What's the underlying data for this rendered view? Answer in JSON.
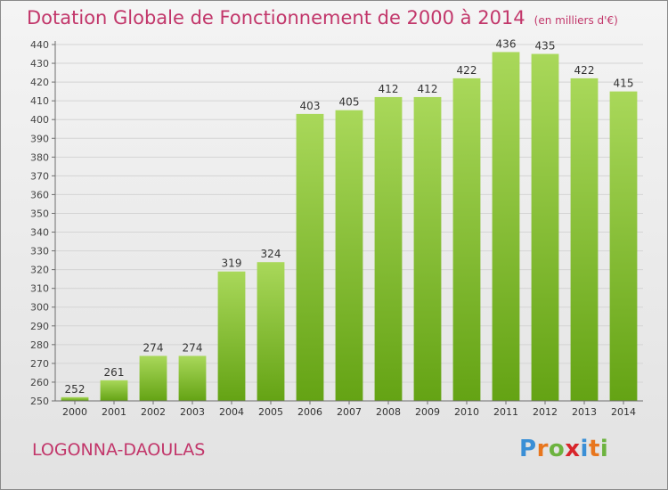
{
  "title": "Dotation Globale de Fonctionnement de 2000 à 2014",
  "unit_label": "(en milliers d'€)",
  "place_name": "LOGONNA-DAOULAS",
  "logo": {
    "letters": [
      "P",
      "r",
      "o",
      "x",
      "i",
      "t",
      "i"
    ],
    "colors": [
      "#3a8fd6",
      "#e8761d",
      "#6db33f",
      "#d8252b",
      "#3a8fd6",
      "#e8761d",
      "#6db33f"
    ]
  },
  "colors": {
    "title": "#c2366a",
    "bar_top": "#a9d85a",
    "bar_bottom": "#64a314",
    "grid": "#d4d4d4",
    "axis": "#6e6e6e"
  },
  "chart_data": {
    "type": "bar",
    "categories": [
      "2000",
      "2001",
      "2002",
      "2003",
      "2004",
      "2005",
      "2006",
      "2007",
      "2008",
      "2009",
      "2010",
      "2011",
      "2012",
      "2013",
      "2014"
    ],
    "values": [
      252,
      261,
      274,
      274,
      319,
      324,
      403,
      405,
      412,
      412,
      422,
      436,
      435,
      422,
      415
    ],
    "title": "Dotation Globale de Fonctionnement de 2000 à 2014",
    "xlabel": "",
    "ylabel": "",
    "ylim": [
      250,
      440
    ],
    "yticks": [
      250,
      260,
      270,
      280,
      290,
      300,
      310,
      320,
      330,
      340,
      350,
      360,
      370,
      380,
      390,
      400,
      410,
      420,
      430,
      440
    ],
    "grid": true,
    "data_labels": true
  }
}
